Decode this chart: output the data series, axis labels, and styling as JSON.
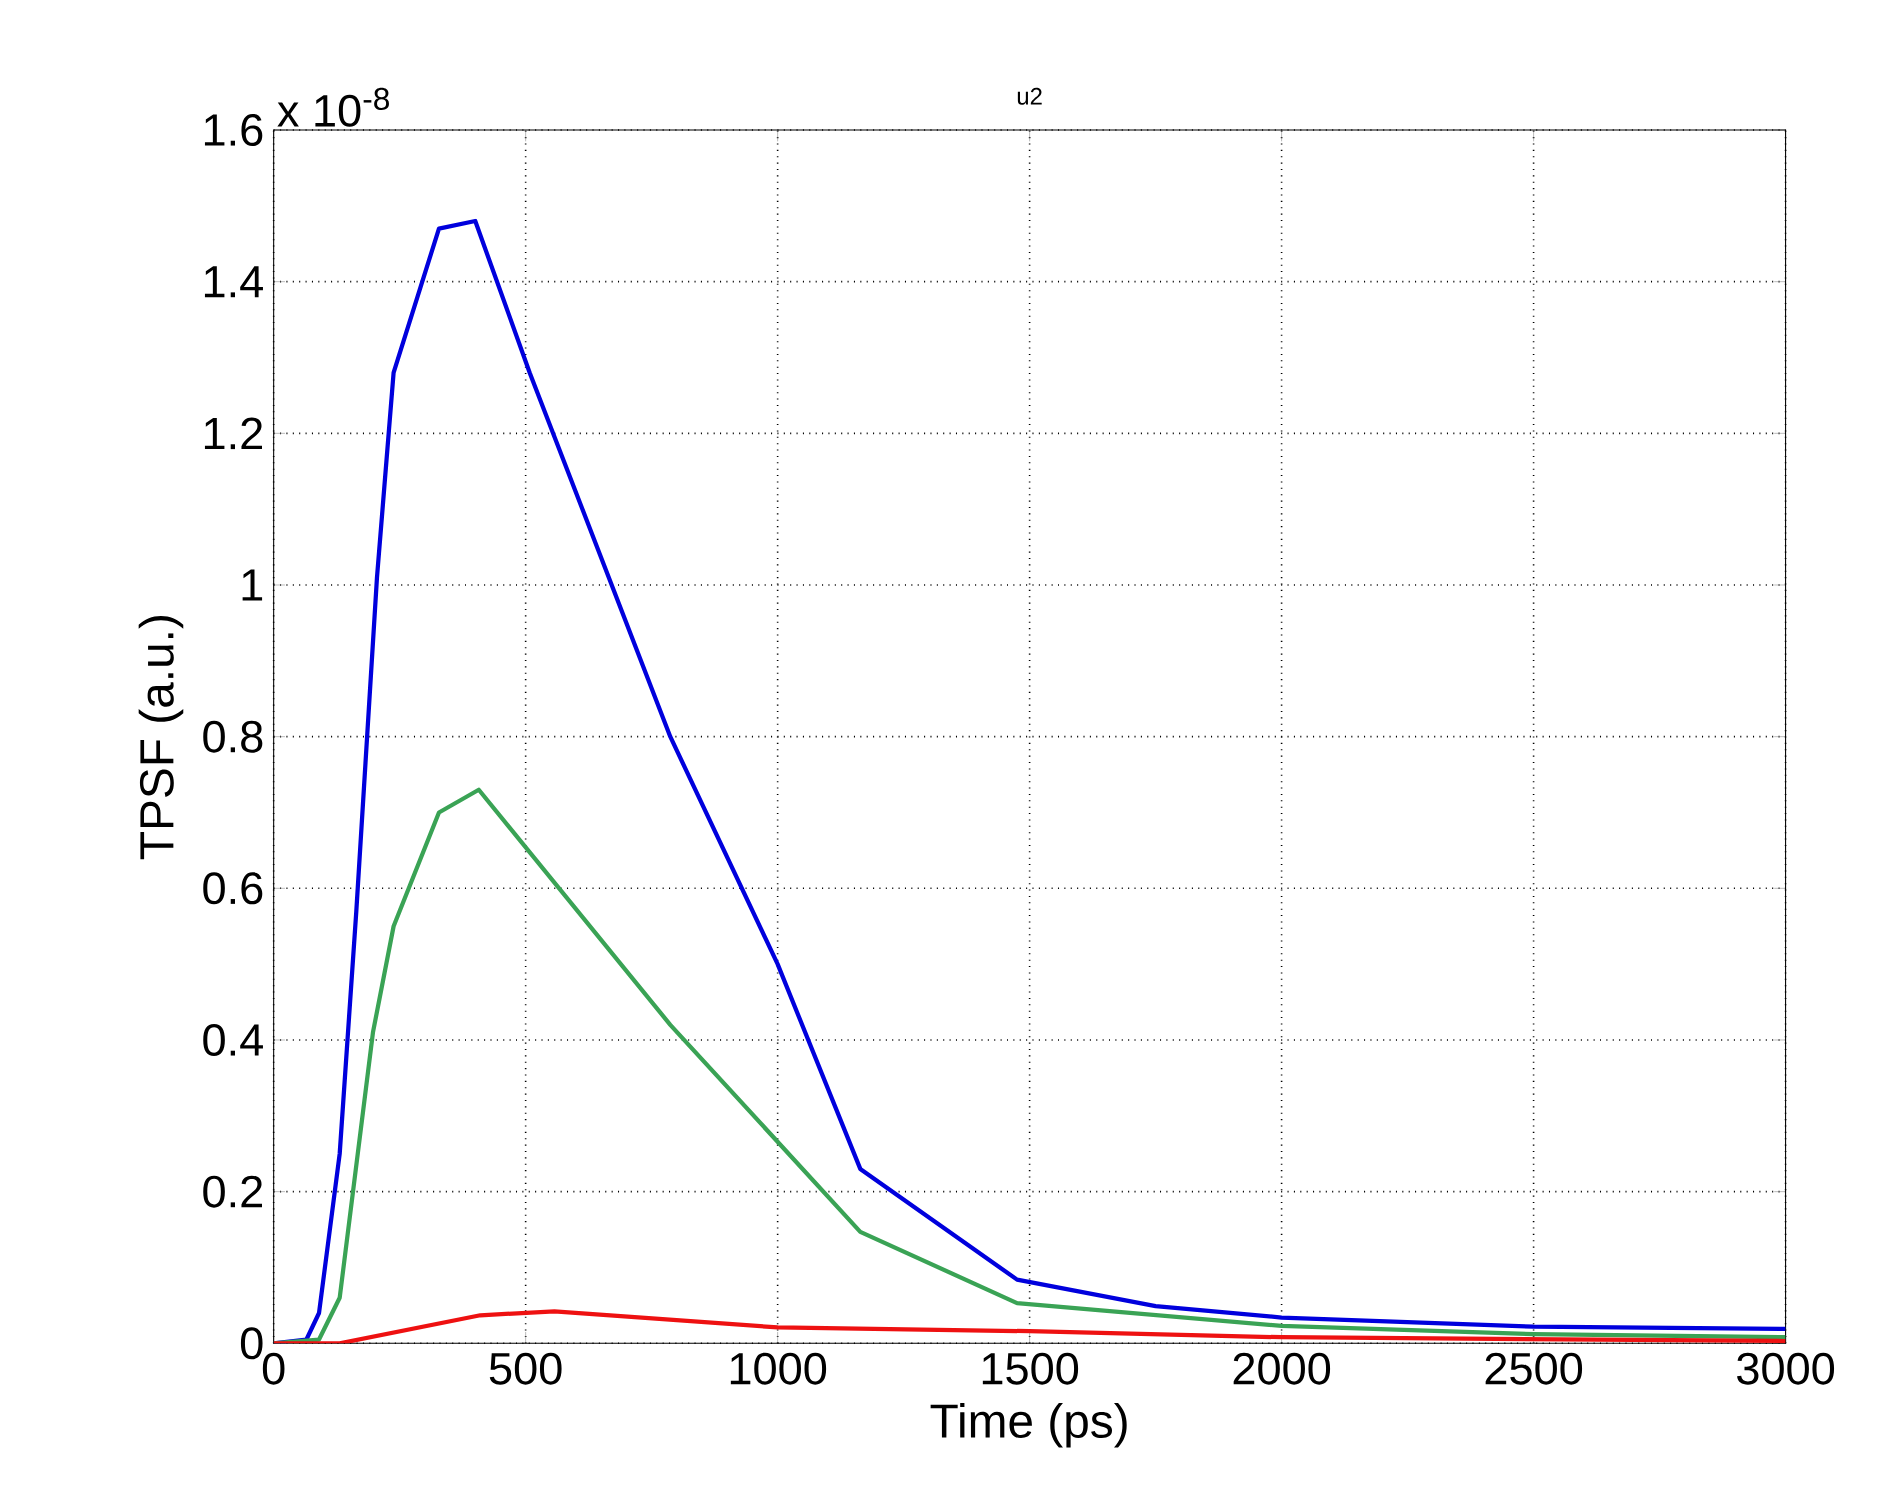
{
  "chart_data": {
    "type": "line",
    "title": "u2",
    "xlabel": "Time (ps)",
    "ylabel": "TPSF (a.u.)",
    "annotations": [
      "x 10$^{-8}$"
    ],
    "xlim": [
      0,
      3000
    ],
    "ylim": [
      0,
      1.6
    ],
    "xticks": [
      0,
      500,
      1000,
      1500,
      2000,
      2500,
      3000
    ],
    "yticks": [
      0,
      0.2,
      0.4,
      0.6,
      0.8,
      1,
      1.2,
      1.4,
      1.6
    ],
    "grid": true,
    "line_style": "solid",
    "series": [
      {
        "color": "#0000dd",
        "x": [
          0,
          65,
          90,
          131,
          164,
          205,
          238,
          328,
          400,
          508,
          787,
          1000,
          1164,
          1475,
          1750,
          2000,
          2500,
          3000
        ],
        "values": [
          0,
          0.005,
          0.04,
          0.25,
          0.57,
          1.01,
          1.28,
          1.47,
          1.48,
          1.28,
          0.8,
          0.5,
          0.23,
          0.084,
          0.049,
          0.034,
          0.022,
          0.019
        ]
      },
      {
        "color": "#3aa355",
        "x": [
          0,
          90,
          131,
          197,
          238,
          328,
          407,
          787,
          1164,
          1475,
          2000,
          2500,
          3000
        ],
        "values": [
          0,
          0.005,
          0.06,
          0.41,
          0.55,
          0.7,
          0.73,
          0.42,
          0.147,
          0.053,
          0.023,
          0.012,
          0.008
        ]
      },
      {
        "color": "#ee1111",
        "x": [
          0,
          131,
          410,
          557,
          1000,
          1500,
          2000,
          3000
        ],
        "values": [
          0,
          0,
          0.037,
          0.042,
          0.021,
          0.016,
          0.008,
          0.003
        ]
      }
    ]
  }
}
